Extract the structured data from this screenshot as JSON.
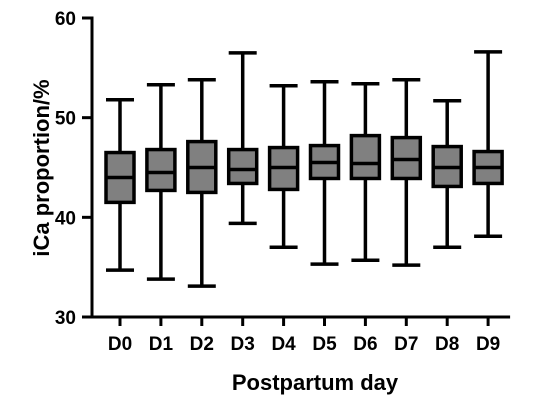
{
  "chart_data": {
    "type": "box",
    "title": "",
    "xlabel": "Postpartum day",
    "ylabel": "iCa proportion/%",
    "ylim": [
      30,
      60
    ],
    "yticks": [
      "30",
      "40",
      "50",
      "60"
    ],
    "categories": [
      "D0",
      "D1",
      "D2",
      "D3",
      "D4",
      "D5",
      "D6",
      "D7",
      "D8",
      "D9"
    ],
    "boxes": [
      {
        "min": 34.7,
        "q1": 41.5,
        "median": 44.0,
        "q3": 46.5,
        "max": 51.8
      },
      {
        "min": 33.8,
        "q1": 42.7,
        "median": 44.5,
        "q3": 46.8,
        "max": 53.3
      },
      {
        "min": 33.1,
        "q1": 42.5,
        "median": 45.0,
        "q3": 47.6,
        "max": 53.8
      },
      {
        "min": 39.4,
        "q1": 43.4,
        "median": 44.8,
        "q3": 46.8,
        "max": 56.5
      },
      {
        "min": 37.0,
        "q1": 42.8,
        "median": 45.0,
        "q3": 47.0,
        "max": 53.2
      },
      {
        "min": 35.3,
        "q1": 43.9,
        "median": 45.5,
        "q3": 47.2,
        "max": 53.6
      },
      {
        "min": 35.7,
        "q1": 43.9,
        "median": 45.4,
        "q3": 48.2,
        "max": 53.4
      },
      {
        "min": 35.2,
        "q1": 43.9,
        "median": 45.8,
        "q3": 48.0,
        "max": 53.8
      },
      {
        "min": 37.0,
        "q1": 43.1,
        "median": 45.0,
        "q3": 47.1,
        "max": 51.7
      },
      {
        "min": 38.1,
        "q1": 43.4,
        "median": 45.0,
        "q3": 46.6,
        "max": 56.6
      }
    ],
    "box_color": "#808080",
    "line_color": "#000000",
    "grid": false,
    "legend": "none"
  }
}
